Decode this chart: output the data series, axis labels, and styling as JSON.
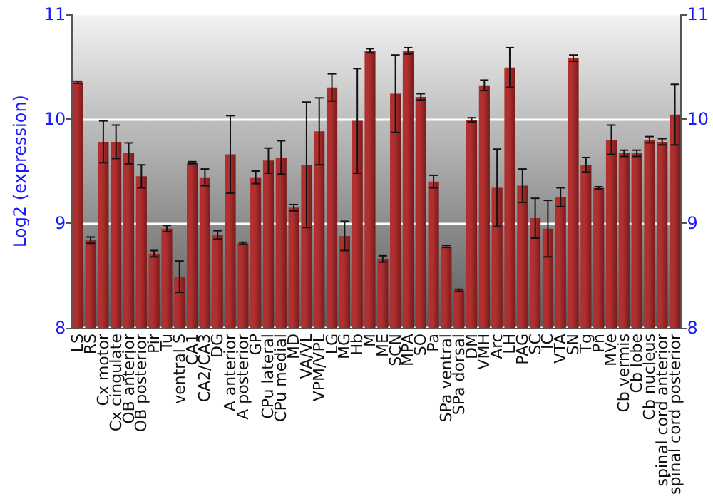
{
  "chart_data": {
    "type": "bar",
    "ylabel": "Log2 (expression)",
    "categories": [
      "LS",
      "RS",
      "Cx motor",
      "Cx cingulate",
      "OB anterior",
      "OB posterior",
      "Pir",
      "Tu",
      "ventral S",
      "CA1",
      "CA2/CA3",
      "DG",
      "A anterior",
      "A posterior",
      "GP",
      "CPu lateral",
      "CPu medial",
      "MD",
      "VA/VL",
      "VPM/VPL",
      "LG",
      "MG",
      "Hb",
      "M",
      "ME",
      "SCN",
      "MPA",
      "SO",
      "Pa",
      "SPa ventral",
      "SPa dorsal",
      "DM",
      "VMH",
      "Arc",
      "LH",
      "PAG",
      "SC",
      "IC",
      "VTA",
      "SN",
      "Tg",
      "Pn",
      "MVe",
      "Cb vermis",
      "Cb lobe",
      "Cb nucleus",
      "spinal cord anterior",
      "spinal cord posterior"
    ],
    "values": [
      10.35,
      8.84,
      9.78,
      9.78,
      9.67,
      9.45,
      8.71,
      8.95,
      8.49,
      9.58,
      9.44,
      8.89,
      9.66,
      8.81,
      9.44,
      9.6,
      9.63,
      9.15,
      9.56,
      9.88,
      10.3,
      8.88,
      9.98,
      10.65,
      8.66,
      10.24,
      10.65,
      10.21,
      9.4,
      8.78,
      8.36,
      9.99,
      10.32,
      9.34,
      10.49,
      9.36,
      9.05,
      8.95,
      9.25,
      10.58,
      9.56,
      9.34,
      9.8,
      9.67,
      9.67,
      9.8,
      9.78,
      10.04
    ],
    "errors": [
      0.01,
      0.03,
      0.2,
      0.16,
      0.1,
      0.11,
      0.03,
      0.03,
      0.15,
      0.01,
      0.08,
      0.04,
      0.37,
      0.01,
      0.06,
      0.12,
      0.16,
      0.03,
      0.6,
      0.32,
      0.13,
      0.14,
      0.5,
      0.02,
      0.03,
      0.37,
      0.03,
      0.03,
      0.06,
      0.01,
      0.01,
      0.02,
      0.05,
      0.37,
      0.19,
      0.16,
      0.19,
      0.27,
      0.09,
      0.03,
      0.07,
      0.01,
      0.14,
      0.03,
      0.03,
      0.03,
      0.03,
      0.29
    ],
    "color": "#b03030",
    "ylim": [
      8,
      11
    ],
    "yticks": [
      8,
      9,
      10,
      11
    ],
    "y2lim": [
      8,
      11
    ],
    "y2ticks": [
      8,
      9,
      10,
      11
    ],
    "grid": "y"
  }
}
